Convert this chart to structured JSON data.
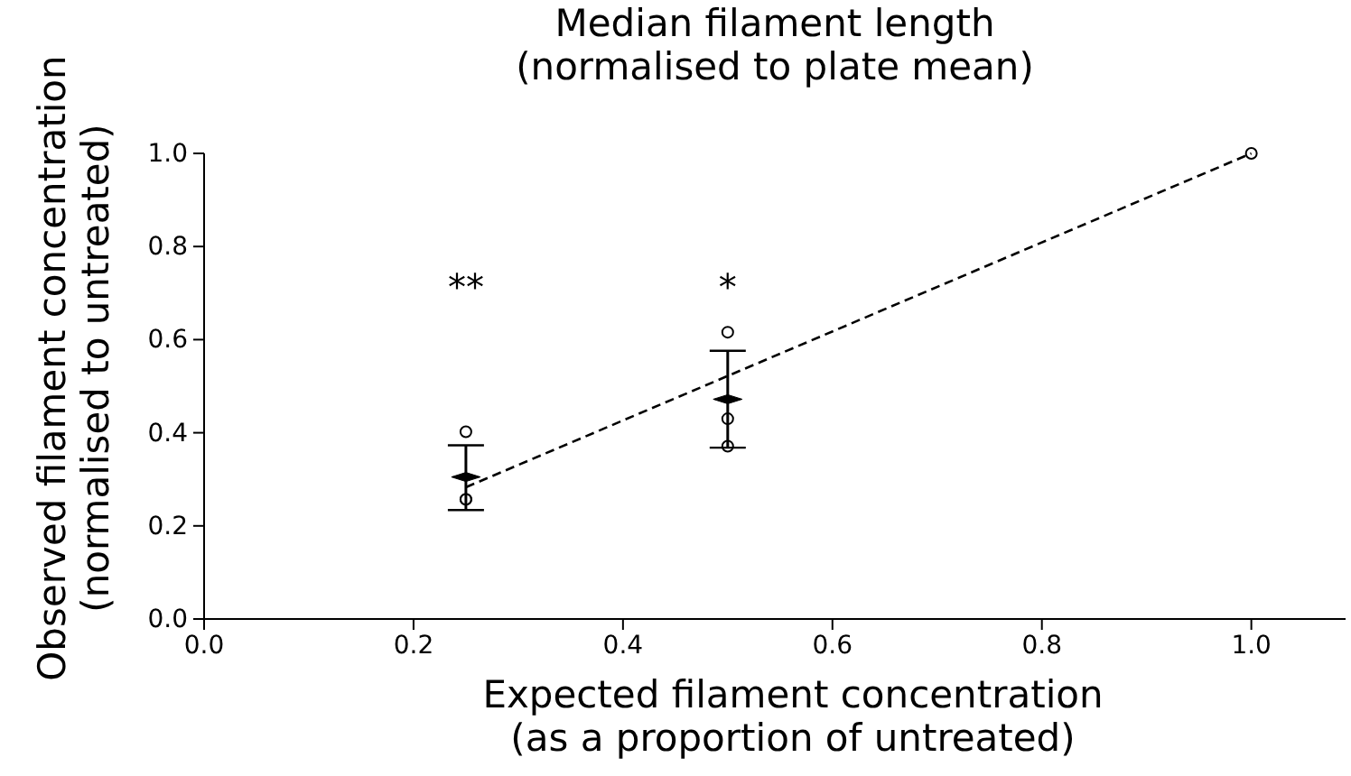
{
  "chart_data": {
    "type": "scatter",
    "title": "Median filament length\n(normalised to plate mean)",
    "xlabel": "Expected filament concentration\n(as a proportion of untreated)",
    "ylabel": "Observed filament concentration\n(normalised to untreated)",
    "xlim": [
      0,
      1.09
    ],
    "xticks": [
      {
        "value": 0,
        "label": "0.0"
      },
      0.2,
      0.4,
      0.6,
      0.8,
      {
        "value": 1,
        "label": "1.0"
      }
    ],
    "ylim": [
      0,
      1
    ],
    "yticks": [
      {
        "value": 0,
        "label": "0.0"
      },
      0.2,
      0.4,
      0.6,
      0.8,
      {
        "value": 1,
        "label": "1.0"
      }
    ],
    "grid": false,
    "series": [
      {
        "type": "scatter",
        "color": "#000000",
        "marker": "diamond",
        "x": [
          0.25,
          0.5
        ],
        "values": [
          0.305,
          0.472
        ],
        "errors": [
          [
            0.234,
            0.373
          ],
          [
            0.368,
            0.576
          ]
        ]
      },
      {
        "color": "#000000",
        "marker": "circle",
        "x": [
          0.25,
          0.25,
          0.25,
          0.5,
          0.5,
          0.5,
          1.0
        ],
        "values": [
          0.402,
          0.257,
          0.257,
          0.616,
          0.43,
          0.371,
          1.0
        ]
      },
      {
        "type": "line",
        "color": "#000000",
        "line_style": "dashed",
        "marker": "none",
        "x": [
          0.25,
          1.0
        ],
        "values": [
          0.283,
          1.0
        ]
      }
    ],
    "annotations": [
      "**",
      "*"
    ]
  }
}
